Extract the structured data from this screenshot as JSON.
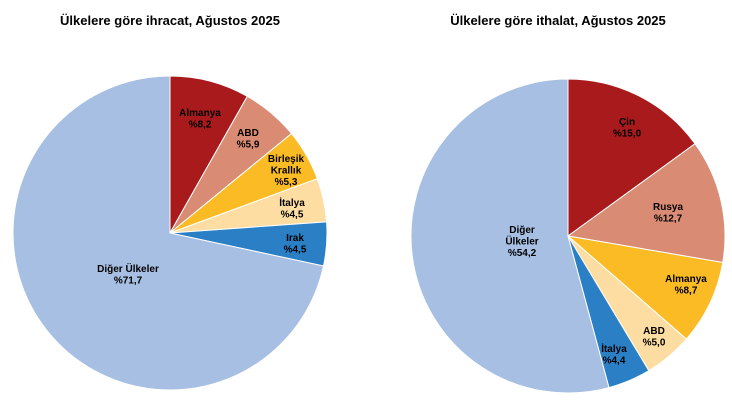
{
  "chart_data": [
    {
      "type": "pie",
      "title": "Ülkelere göre ihracat, Ağustos 2025",
      "start": "top",
      "direction": "clockwise",
      "slices": [
        {
          "label": [
            "Almanya"
          ],
          "value_text": "%8,2",
          "value": 8.2,
          "color": "#A91A1C"
        },
        {
          "label": [
            "ABD"
          ],
          "value_text": "%5,9",
          "value": 5.9,
          "color": "#D98B73"
        },
        {
          "label": [
            "Birleşik",
            "Krallık"
          ],
          "value_text": "%5,3",
          "value": 5.3,
          "color": "#FABB24"
        },
        {
          "label": [
            "İtalya"
          ],
          "value_text": "%4,5",
          "value": 4.5,
          "color": "#FDDDA1"
        },
        {
          "label": [
            "Irak"
          ],
          "value_text": "%4,5",
          "value": 4.5,
          "color": "#2A7FC5"
        },
        {
          "label": [
            "Diğer Ülkeler"
          ],
          "value_text": "%71,7",
          "value": 71.7,
          "color": "#A6BFE3"
        }
      ]
    },
    {
      "type": "pie",
      "title": "Ülkelere göre ithalat, Ağustos 2025",
      "start": "top",
      "direction": "clockwise",
      "slices": [
        {
          "label": [
            "Çin"
          ],
          "value_text": "%15,0",
          "value": 15.0,
          "color": "#A91A1C"
        },
        {
          "label": [
            "Rusya"
          ],
          "value_text": "%12,7",
          "value": 12.7,
          "color": "#D98B73"
        },
        {
          "label": [
            "Almanya"
          ],
          "value_text": "%8,7",
          "value": 8.7,
          "color": "#FABB24"
        },
        {
          "label": [
            "ABD"
          ],
          "value_text": "%5,0",
          "value": 5.0,
          "color": "#FDDDA1"
        },
        {
          "label": [
            "İtalya"
          ],
          "value_text": "%4,4",
          "value": 4.4,
          "color": "#2A7FC5"
        },
        {
          "label": [
            "Diğer",
            "Ülkeler"
          ],
          "value_text": "%54,2",
          "value": 54.2,
          "color": "#A6BFE3"
        }
      ]
    }
  ]
}
